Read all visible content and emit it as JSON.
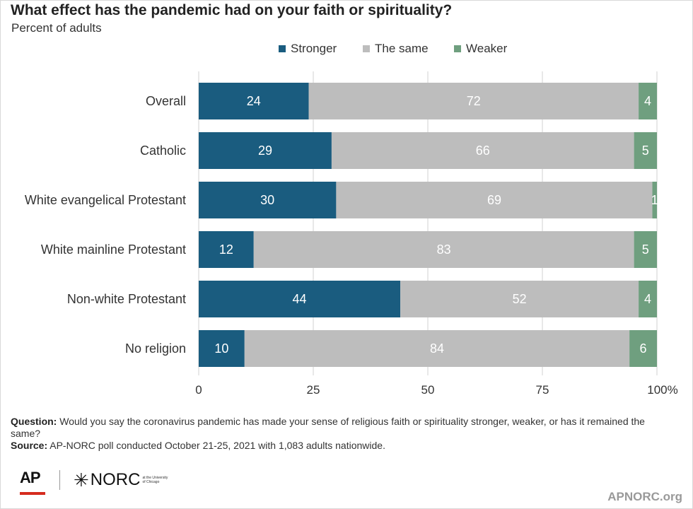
{
  "title": "What effect has the pandemic had on your faith or spirituality?",
  "subtitle": "Percent of adults",
  "colors": {
    "stronger": "#1a5c7f",
    "same": "#bdbdbd",
    "weaker": "#6f9f7f",
    "grid": "#d0d0d0",
    "axis_text": "#333333"
  },
  "chart_data": {
    "type": "bar",
    "orientation": "horizontal",
    "stacked": true,
    "categories": [
      "Overall",
      "Catholic",
      "White evangelical Protestant",
      "White mainline Protestant",
      "Non-white Protestant",
      "No religion"
    ],
    "series": [
      {
        "name": "Stronger",
        "color": "#1a5c7f",
        "values": [
          24,
          29,
          30,
          12,
          44,
          10
        ]
      },
      {
        "name": "The same",
        "color": "#bdbdbd",
        "values": [
          72,
          66,
          69,
          83,
          52,
          84
        ]
      },
      {
        "name": "Weaker",
        "color": "#6f9f7f",
        "values": [
          4,
          5,
          1,
          5,
          4,
          6
        ]
      }
    ],
    "xlim": [
      0,
      100
    ],
    "xticks": [
      0,
      25,
      50,
      75,
      100
    ],
    "xtick_labels": [
      "0",
      "25",
      "50",
      "75",
      "100%"
    ],
    "grid": true,
    "legend_position": "top"
  },
  "footer": {
    "question_label": "Question:",
    "question_text": "Would you say the coronavirus pandemic has made your sense of religious faith or spirituality stronger, weaker, or has it remained the same?",
    "source_label": "Source:",
    "source_text": "AP-NORC poll conducted October 21-25, 2021 with 1,083 adults nationwide."
  },
  "logos": {
    "ap": "AP",
    "norc": "NORC",
    "norc_small": "at the University of Chicago"
  },
  "site": "APNORC.org"
}
